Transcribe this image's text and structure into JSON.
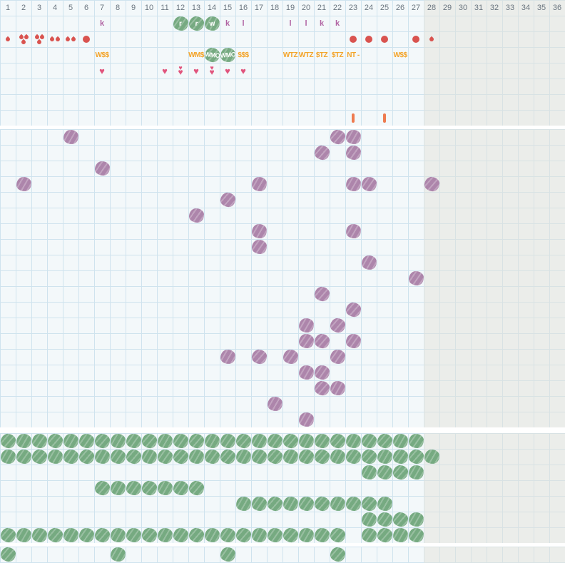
{
  "icons": {
    "heart": "♥"
  },
  "colors": {
    "background": "#f3f8fa",
    "grid_line": "#cfe3ee",
    "inactive_background": "#ebedea",
    "inactive_grid_line": "#d8e2e4",
    "separator": "#ffffff",
    "header_text": "#6b7680",
    "red": "#d9534f",
    "pink_heart": "#e1557d",
    "orange": "#f3a42a",
    "orange_bar": "#ee7b50",
    "purple_letter": "#b164a3",
    "green_blob": "#76aa81",
    "purple_blob": "#ad85ab",
    "blob_text": "#ffffff"
  },
  "grid": {
    "columns": 36,
    "active_columns": 27,
    "cell_size": 22,
    "day_numbers": [
      "1",
      "2",
      "3",
      "4",
      "5",
      "6",
      "7",
      "8",
      "9",
      "10",
      "11",
      "12",
      "13",
      "14",
      "15",
      "16",
      "17",
      "18",
      "19",
      "20",
      "21",
      "22",
      "23",
      "24",
      "25",
      "26",
      "27",
      "28",
      "29",
      "30",
      "31",
      "32",
      "33",
      "34",
      "35",
      "36"
    ]
  },
  "top_section": {
    "row_count": 8,
    "cells": [
      {
        "row": 1,
        "col": 7,
        "type": "letter",
        "text": "k"
      },
      {
        "row": 1,
        "col": 12,
        "type": "blob-letter",
        "text": "r"
      },
      {
        "row": 1,
        "col": 13,
        "type": "blob-letter",
        "text": "r"
      },
      {
        "row": 1,
        "col": 14,
        "type": "blob-letter",
        "text": "w"
      },
      {
        "row": 1,
        "col": 15,
        "type": "letter",
        "text": "k"
      },
      {
        "row": 1,
        "col": 16,
        "type": "letter",
        "text": "l"
      },
      {
        "row": 1,
        "col": 19,
        "type": "letter",
        "text": "l"
      },
      {
        "row": 1,
        "col": 20,
        "type": "letter",
        "text": "l"
      },
      {
        "row": 1,
        "col": 21,
        "type": "letter",
        "text": "k"
      },
      {
        "row": 1,
        "col": 22,
        "type": "letter",
        "text": "k"
      },
      {
        "row": 2,
        "col": 1,
        "type": "drop1"
      },
      {
        "row": 2,
        "col": 2,
        "type": "drop3"
      },
      {
        "row": 2,
        "col": 3,
        "type": "drop3"
      },
      {
        "row": 2,
        "col": 4,
        "type": "drop2"
      },
      {
        "row": 2,
        "col": 5,
        "type": "drop2"
      },
      {
        "row": 2,
        "col": 6,
        "type": "dot"
      },
      {
        "row": 2,
        "col": 23,
        "type": "dot"
      },
      {
        "row": 2,
        "col": 24,
        "type": "dot"
      },
      {
        "row": 2,
        "col": 25,
        "type": "dot"
      },
      {
        "row": 2,
        "col": 27,
        "type": "dot"
      },
      {
        "row": 2,
        "col": 28,
        "type": "drop1"
      },
      {
        "row": 3,
        "col": 7,
        "type": "tag",
        "text": "W$$"
      },
      {
        "row": 3,
        "col": 13,
        "type": "tag",
        "text": "WM$"
      },
      {
        "row": 3,
        "col": 14,
        "type": "blob-tag",
        "text": "WMO"
      },
      {
        "row": 3,
        "col": 15,
        "type": "blob-tag",
        "text": "WMO"
      },
      {
        "row": 3,
        "col": 16,
        "type": "tag",
        "text": "$$$"
      },
      {
        "row": 3,
        "col": 19,
        "type": "tag",
        "text": "WTZ"
      },
      {
        "row": 3,
        "col": 20,
        "type": "tag",
        "text": "WTZ"
      },
      {
        "row": 3,
        "col": 21,
        "type": "tag",
        "text": "$TZ"
      },
      {
        "row": 3,
        "col": 22,
        "type": "tag",
        "text": "$TZ"
      },
      {
        "row": 3,
        "col": 23,
        "type": "tag",
        "text": "NT -"
      },
      {
        "row": 3,
        "col": 26,
        "type": "tag",
        "text": "W$$"
      },
      {
        "row": 4,
        "col": 7,
        "type": "heart"
      },
      {
        "row": 4,
        "col": 11,
        "type": "heart"
      },
      {
        "row": 4,
        "col": 12,
        "type": "heart2"
      },
      {
        "row": 4,
        "col": 13,
        "type": "heart"
      },
      {
        "row": 4,
        "col": 14,
        "type": "heart2"
      },
      {
        "row": 4,
        "col": 15,
        "type": "heart"
      },
      {
        "row": 4,
        "col": 16,
        "type": "heart"
      },
      {
        "row": 7,
        "col": 23,
        "type": "bar"
      },
      {
        "row": 7,
        "col": 25,
        "type": "bar"
      }
    ]
  },
  "middle_section": {
    "row_count": 19,
    "blob_rows": [
      {
        "row": 1,
        "cols": [
          5,
          22,
          23
        ]
      },
      {
        "row": 2,
        "cols": [
          21,
          23
        ]
      },
      {
        "row": 3,
        "cols": [
          7
        ]
      },
      {
        "row": 4,
        "cols": [
          2,
          17,
          23,
          24,
          28
        ]
      },
      {
        "row": 5,
        "cols": [
          15
        ]
      },
      {
        "row": 6,
        "cols": [
          13
        ]
      },
      {
        "row": 7,
        "cols": [
          17,
          23
        ]
      },
      {
        "row": 8,
        "cols": [
          17
        ]
      },
      {
        "row": 9,
        "cols": [
          24
        ]
      },
      {
        "row": 10,
        "cols": [
          27
        ]
      },
      {
        "row": 11,
        "cols": [
          21
        ]
      },
      {
        "row": 12,
        "cols": [
          23
        ]
      },
      {
        "row": 13,
        "cols": [
          20,
          22
        ]
      },
      {
        "row": 14,
        "cols": [
          20,
          21,
          23
        ]
      },
      {
        "row": 15,
        "cols": [
          15,
          17,
          19,
          22
        ]
      },
      {
        "row": 16,
        "cols": [
          20,
          21
        ]
      },
      {
        "row": 17,
        "cols": [
          21,
          22
        ]
      },
      {
        "row": 18,
        "cols": [
          18
        ]
      },
      {
        "row": 19,
        "cols": [
          20
        ]
      }
    ]
  },
  "green_section": {
    "row_count": 7,
    "blob_rows": [
      {
        "row": 1,
        "ranges": [
          [
            1,
            27
          ]
        ]
      },
      {
        "row": 2,
        "ranges": [
          [
            1,
            28
          ]
        ]
      },
      {
        "row": 3,
        "ranges": [
          [
            24,
            27
          ]
        ]
      },
      {
        "row": 4,
        "ranges": [
          [
            7,
            13
          ]
        ]
      },
      {
        "row": 5,
        "ranges": [
          [
            16,
            25
          ]
        ]
      },
      {
        "row": 6,
        "ranges": [
          [
            24,
            27
          ]
        ]
      },
      {
        "row": 7,
        "ranges": [
          [
            1,
            22
          ],
          [
            24,
            27
          ]
        ]
      }
    ]
  },
  "bottom_section": {
    "row_count": 1,
    "blob_rows": [
      {
        "row": 1,
        "cols": [
          1,
          8,
          15,
          22
        ]
      }
    ]
  }
}
